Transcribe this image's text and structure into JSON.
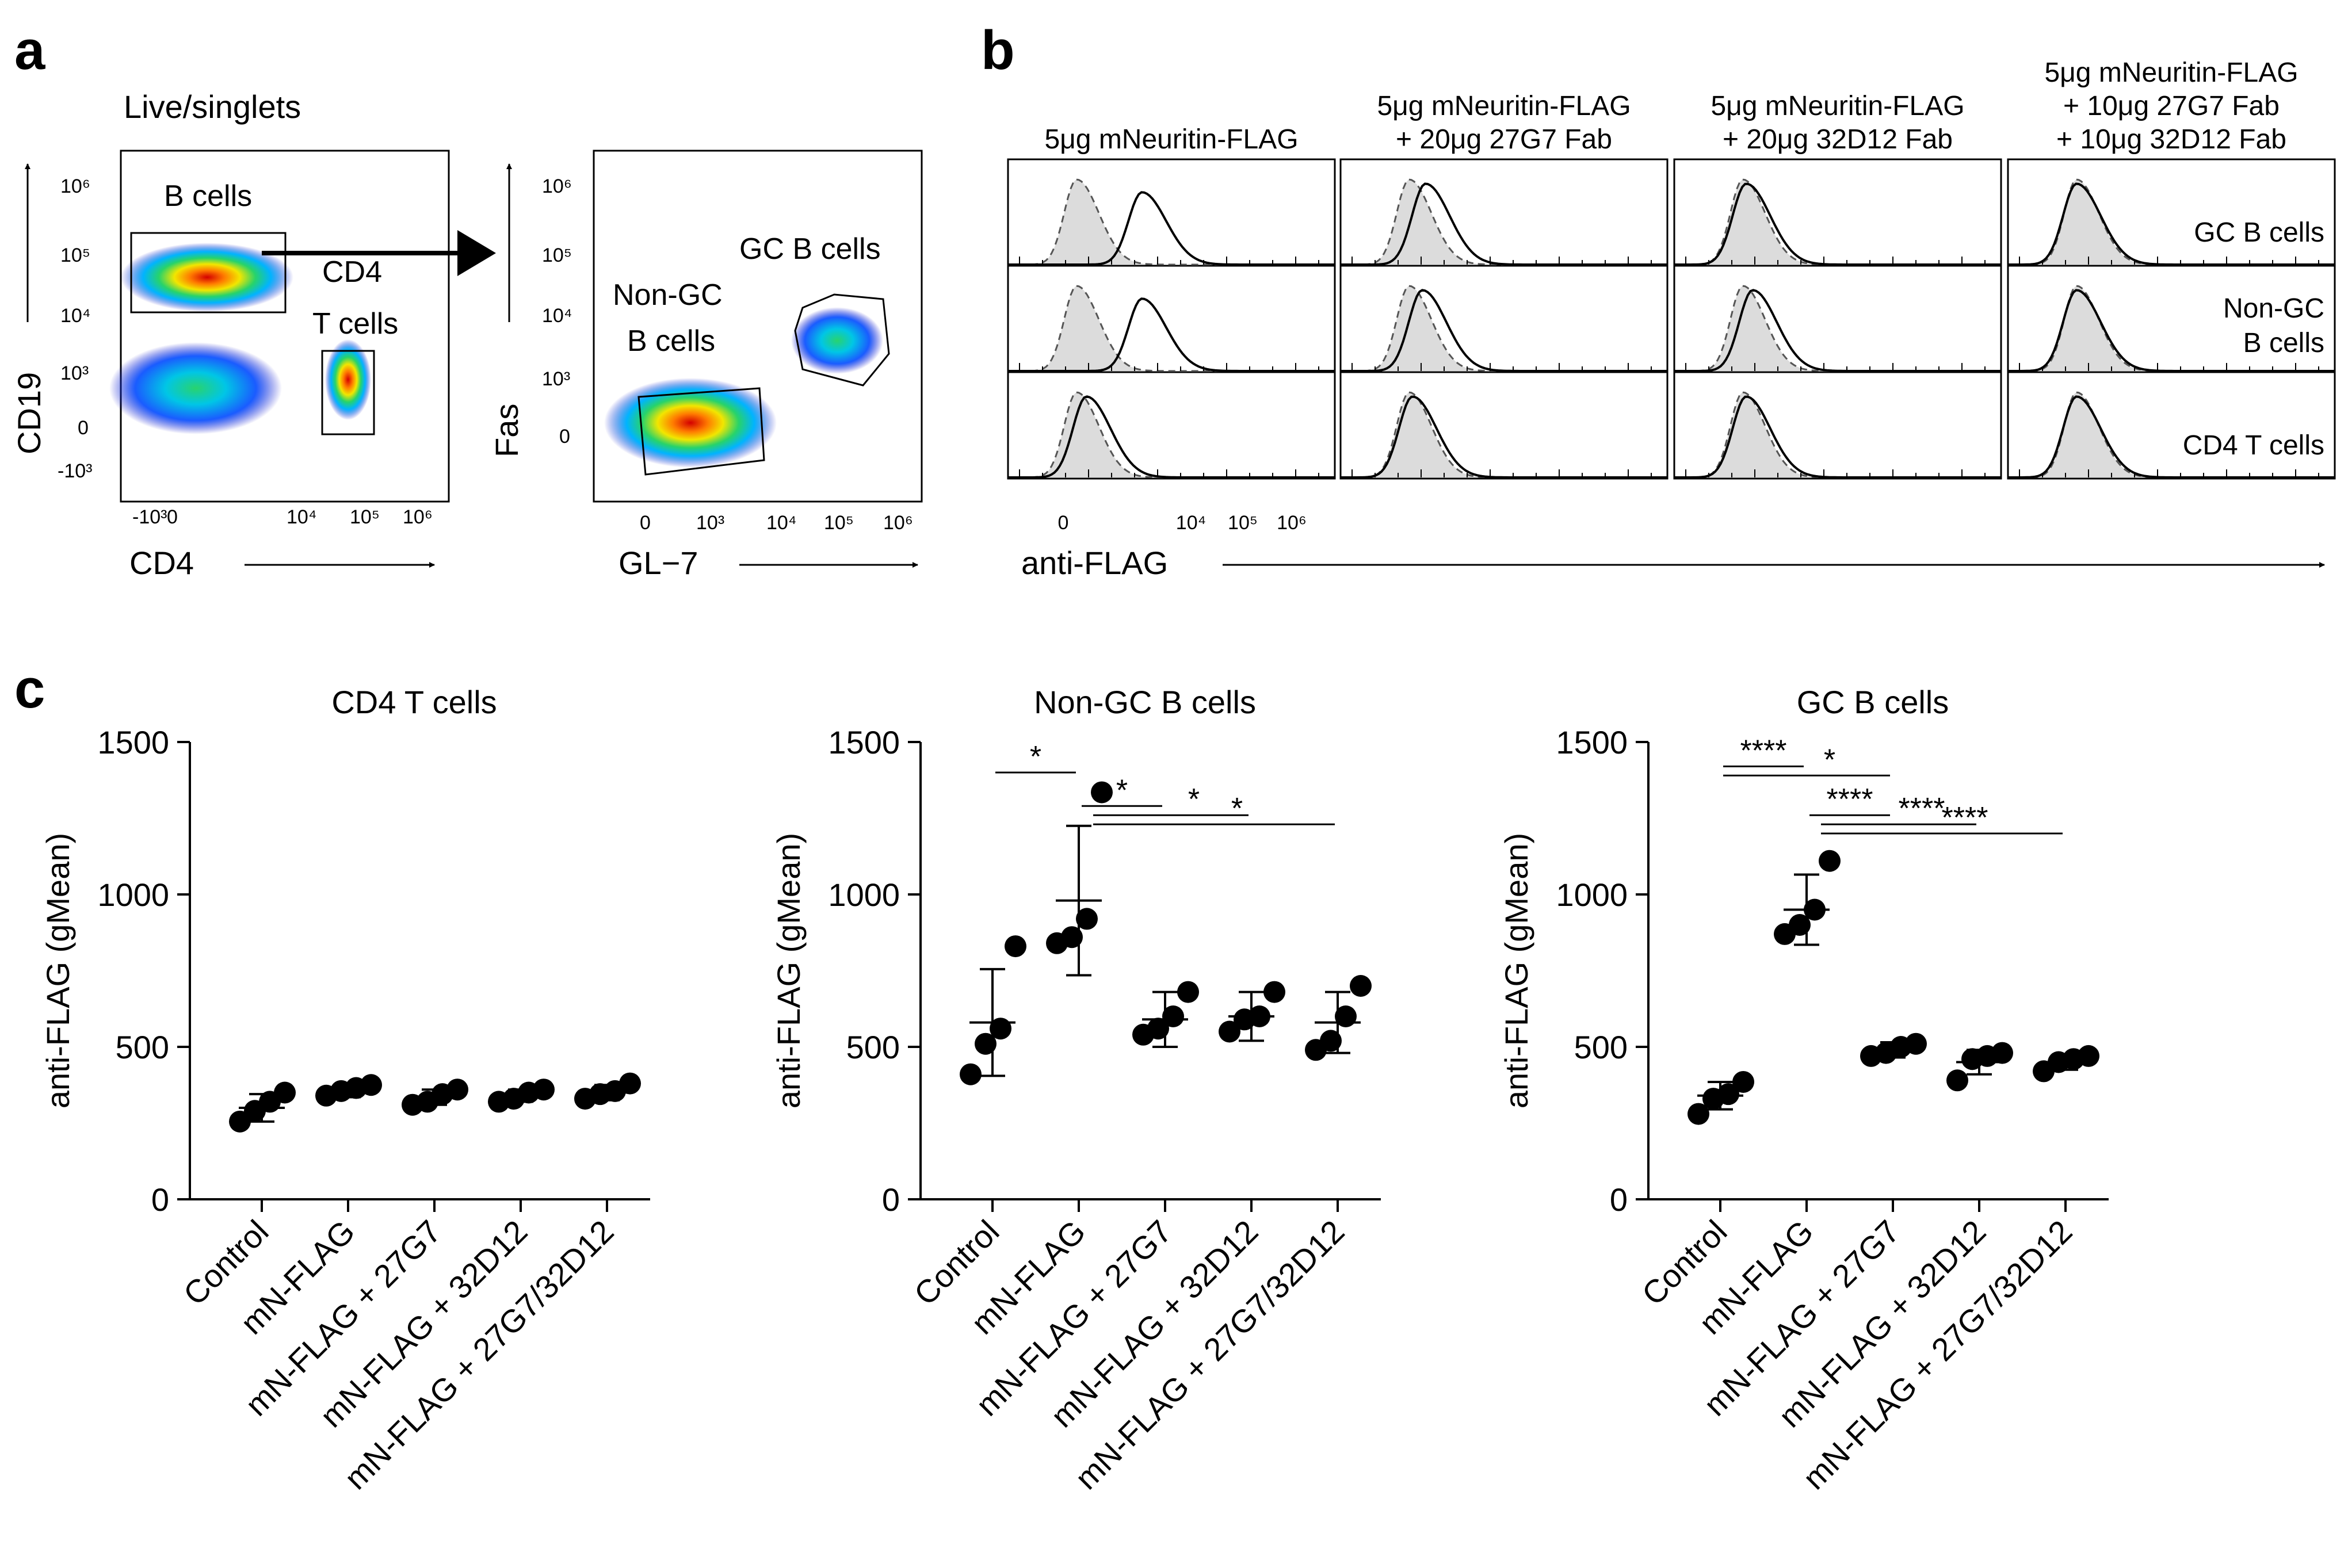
{
  "panel_labels": {
    "a": "a",
    "b": "b",
    "c": "c"
  },
  "panel_a": {
    "title": "Live/singlets",
    "plot1": {
      "xlabel": "CD4",
      "ylabel": "CD19",
      "x_ticks": [
        "-10³",
        "0",
        "10⁴",
        "10⁵",
        "10⁶"
      ],
      "y_ticks": [
        "10⁶",
        "10⁵",
        "10⁴",
        "10³",
        "0",
        "-10³"
      ],
      "gates": [
        "B cells",
        "CD4",
        "T cells"
      ]
    },
    "plot2": {
      "xlabel": "GL−7",
      "ylabel": "Fas",
      "x_ticks": [
        "0",
        "10³",
        "10⁴",
        "10⁵",
        "10⁶"
      ],
      "y_ticks": [
        "10⁶",
        "10⁵",
        "10⁴",
        "10³",
        "0"
      ],
      "gates": [
        "GC B cells",
        "Non-GC",
        "B cells"
      ]
    }
  },
  "panel_b": {
    "xlabel": "anti-FLAG",
    "x_ticks": [
      "0",
      "10⁴",
      "10⁵",
      "10⁶"
    ],
    "columns": [
      {
        "lines": [
          "5μg mNeuritin-FLAG"
        ]
      },
      {
        "lines": [
          "5μg mNeuritin-FLAG",
          "+ 20μg 27G7 Fab"
        ]
      },
      {
        "lines": [
          "5μg mNeuritin-FLAG",
          "+ 20μg 32D12 Fab"
        ]
      },
      {
        "lines": [
          "5μg mNeuritin-FLAG",
          "+ 10μg 27G7 Fab",
          "+ 10μg 32D12 Fab"
        ]
      }
    ],
    "row_labels": [
      [
        "GC B cells"
      ],
      [
        "Non-GC",
        "B cells"
      ],
      [
        "CD4 T cells"
      ]
    ]
  },
  "chart_data": [
    {
      "type": "scatter",
      "title": "CD4 T cells",
      "ylabel": "anti-FLAG (gMean)",
      "ylim": [
        0,
        1500
      ],
      "yticks": [
        "0",
        "500",
        "1000",
        "1500"
      ],
      "categories": [
        "Control",
        "mN-FLAG",
        "mN-FLAG + 27G7",
        "mN-FLAG + 32D12",
        "mN-FLAG + 27G7/32D12"
      ],
      "points": [
        [
          255,
          290,
          320,
          350
        ],
        [
          340,
          355,
          365,
          375
        ],
        [
          310,
          320,
          345,
          360
        ],
        [
          320,
          330,
          350,
          360
        ],
        [
          330,
          345,
          355,
          380
        ]
      ],
      "mean": [
        300,
        355,
        335,
        340,
        350
      ],
      "sd": [
        45,
        20,
        25,
        20,
        25
      ],
      "significance": []
    },
    {
      "type": "scatter",
      "title": "Non-GC B cells",
      "ylabel": "anti-FLAG (gMean)",
      "ylim": [
        0,
        1500
      ],
      "yticks": [
        "0",
        "500",
        "1000",
        "1500"
      ],
      "categories": [
        "Control",
        "mN-FLAG",
        "mN-FLAG + 27G7",
        "mN-FLAG + 32D12",
        "mN-FLAG + 27G7/32D12"
      ],
      "points": [
        [
          410,
          510,
          560,
          830
        ],
        [
          840,
          860,
          920,
          1335
        ],
        [
          540,
          560,
          600,
          680
        ],
        [
          550,
          590,
          600,
          680
        ],
        [
          490,
          520,
          600,
          700
        ]
      ],
      "mean": [
        580,
        980,
        590,
        600,
        580
      ],
      "sd": [
        175,
        245,
        90,
        80,
        100
      ],
      "significance": [
        {
          "from": 0,
          "to": 1,
          "label": "*",
          "y": 1400
        },
        {
          "from": 1,
          "to": 2,
          "label": "*",
          "y": 1290
        },
        {
          "from": 1,
          "to": 3,
          "label": "*",
          "y": 1260
        },
        {
          "from": 1,
          "to": 4,
          "label": "*",
          "y": 1230
        }
      ]
    },
    {
      "type": "scatter",
      "title": "GC B cells",
      "ylabel": "anti-FLAG (gMean)",
      "ylim": [
        0,
        1500
      ],
      "yticks": [
        "0",
        "500",
        "1000",
        "1500"
      ],
      "categories": [
        "Control",
        "mN-FLAG",
        "mN-FLAG + 27G7",
        "mN-FLAG + 32D12",
        "mN-FLAG + 27G7/32D12"
      ],
      "points": [
        [
          280,
          330,
          345,
          385
        ],
        [
          870,
          900,
          950,
          1110
        ],
        [
          470,
          480,
          500,
          510
        ],
        [
          390,
          460,
          470,
          480
        ],
        [
          420,
          450,
          460,
          470
        ]
      ],
      "mean": [
        340,
        950,
        490,
        450,
        450
      ],
      "sd": [
        45,
        115,
        25,
        40,
        25
      ],
      "significance": [
        {
          "from": 0,
          "to": 1,
          "label": "****",
          "y": 1420
        },
        {
          "from": 0,
          "to": 2,
          "label": "*",
          "y": 1390
        },
        {
          "from": 1,
          "to": 2,
          "label": "****",
          "y": 1260
        },
        {
          "from": 1,
          "to": 3,
          "label": "****",
          "y": 1230
        },
        {
          "from": 1,
          "to": 4,
          "label": "****",
          "y": 1200
        }
      ]
    }
  ]
}
